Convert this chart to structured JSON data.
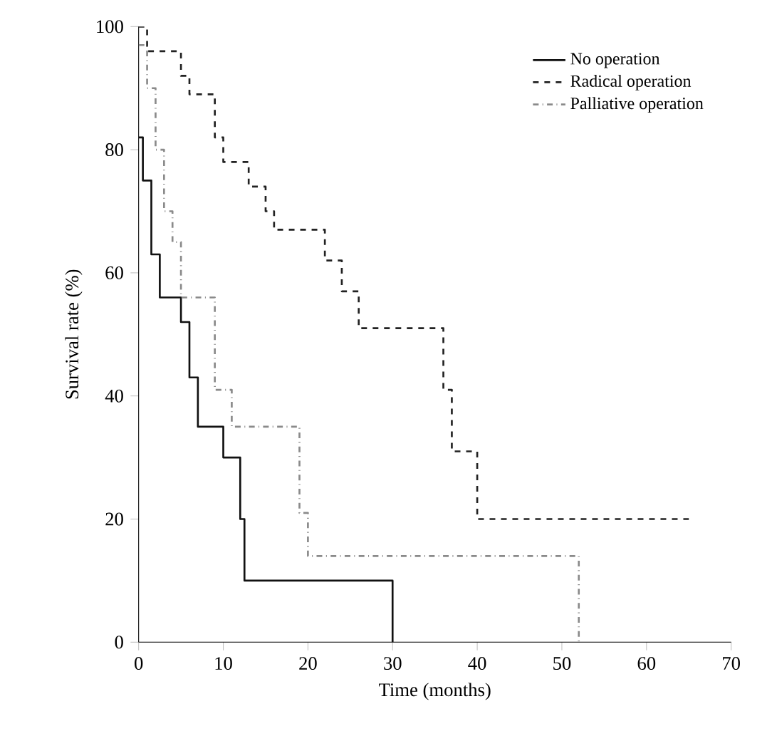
{
  "chart_data": {
    "type": "step",
    "xlabel": "Time (months)",
    "ylabel": "Survival rate (%)",
    "xlim": [
      0,
      70
    ],
    "ylim": [
      0,
      100
    ],
    "xticks": [
      0,
      10,
      20,
      30,
      40,
      50,
      60,
      70
    ],
    "yticks": [
      0,
      20,
      40,
      60,
      80,
      100
    ],
    "legend": "top right",
    "series": [
      {
        "name": "No operation",
        "color": "#111111",
        "line_style": "solid",
        "x": [
          0,
          0.5,
          1.5,
          2.5,
          5,
          6,
          7,
          10,
          12,
          12.5,
          30
        ],
        "values": [
          82,
          75,
          63,
          56,
          52,
          43,
          35,
          30,
          20,
          10,
          0
        ]
      },
      {
        "name": "Radical operation",
        "color": "#222222",
        "line_style": "dashed",
        "x": [
          0,
          1,
          5,
          6,
          9,
          10,
          13,
          15,
          16,
          22,
          24,
          26,
          36,
          37,
          40,
          65
        ],
        "values": [
          100,
          96,
          92,
          89,
          82,
          78,
          74,
          70,
          67,
          62,
          57,
          51,
          41,
          31,
          20,
          20
        ]
      },
      {
        "name": "Palliative operation",
        "color": "#8a8a8a",
        "line_style": "dashdotted",
        "x": [
          0,
          1,
          2,
          3,
          4,
          5,
          9,
          11,
          19,
          20,
          52
        ],
        "values": [
          97,
          90,
          80,
          70,
          65,
          56,
          41,
          35,
          21,
          14,
          0
        ]
      }
    ]
  }
}
